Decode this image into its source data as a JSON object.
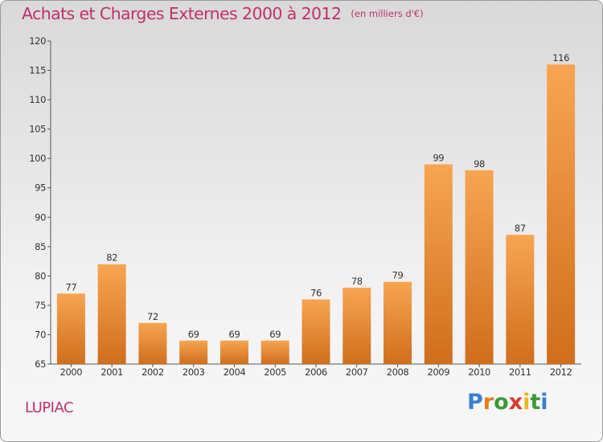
{
  "title": "Achats et Charges Externes 2000 à 2012",
  "unit": "(en milliers d'€)",
  "place": "LUPIAC",
  "logo": {
    "text": "Proxiti",
    "letters": [
      {
        "ch": "P",
        "color": "#3a7fd0"
      },
      {
        "ch": "r",
        "color": "#e87c1e"
      },
      {
        "ch": "o",
        "color": "#3a9a3a"
      },
      {
        "ch": "x",
        "color": "#d63a2f"
      },
      {
        "ch": "i",
        "color": "#e8b81e"
      },
      {
        "ch": "t",
        "color": "#3a9a3a"
      },
      {
        "ch": "i",
        "color": "#3a7fd0"
      }
    ]
  },
  "colors": {
    "title": "#c0306e",
    "bar_light": "#f7a552",
    "bar_dark": "#d06e1c"
  },
  "chart_data": {
    "type": "bar",
    "categories": [
      "2000",
      "2001",
      "2002",
      "2003",
      "2004",
      "2005",
      "2006",
      "2007",
      "2008",
      "2009",
      "2010",
      "2011",
      "2012"
    ],
    "values": [
      77,
      82,
      72,
      69,
      69,
      69,
      76,
      78,
      79,
      99,
      98,
      87,
      116
    ],
    "ylim": [
      65,
      120
    ],
    "yticks": [
      65,
      70,
      75,
      80,
      85,
      90,
      95,
      100,
      105,
      110,
      115,
      120
    ],
    "data_labels": true,
    "grid": false
  }
}
